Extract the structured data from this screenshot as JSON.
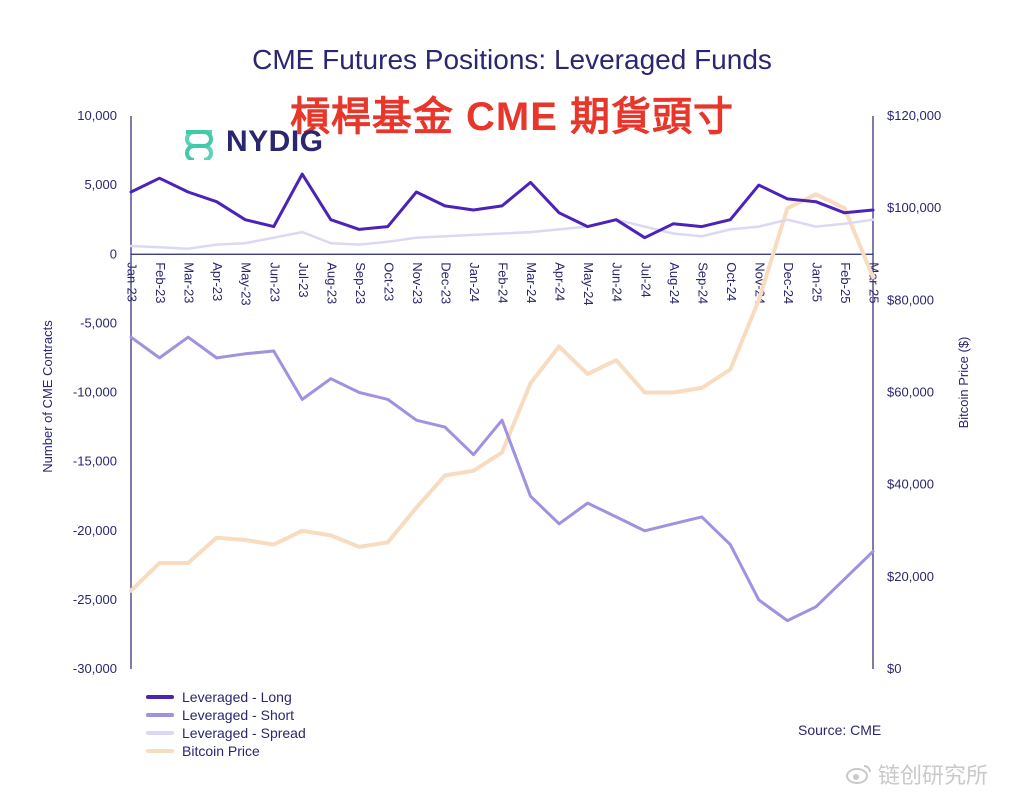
{
  "title": "CME Futures Positions: Leveraged Funds",
  "subtitle": "槓桿基金 CME 期貨頭寸",
  "logo_text": "NYDIG",
  "source": "Source: CME",
  "watermark": "链创研究所",
  "colors": {
    "long": "#4b23b8",
    "short": "#a290e0",
    "spread": "#dcd8f4",
    "bitcoin": "#f7dcc0",
    "axis_text": "#2a2670",
    "logo_accent": "#44c9a8",
    "subtitle": "#e8362b"
  },
  "chart_data": {
    "type": "line",
    "title": "CME Futures Positions: Leveraged Funds",
    "ylabel": "Number of CME Contracts",
    "y2label": "Bitcoin Price ($)",
    "ylim": [
      -30000,
      10000
    ],
    "y2lim": [
      0,
      120000
    ],
    "grid": false,
    "legend_position": "bottom-left",
    "yticks": [
      "10,000",
      "5,000",
      "0",
      "-5,000",
      "-10,000",
      "-15,000",
      "-20,000",
      "-25,000",
      "-30,000"
    ],
    "y2ticks": [
      "$120,000",
      "$100,000",
      "$80,000",
      "$60,000",
      "$40,000",
      "$20,000",
      "$0"
    ],
    "x": [
      "Jan-23",
      "Feb-23",
      "Mar-23",
      "Apr-23",
      "May-23",
      "Jun-23",
      "Jul-23",
      "Aug-23",
      "Sep-23",
      "Oct-23",
      "Nov-23",
      "Dec-23",
      "Jan-24",
      "Feb-24",
      "Mar-24",
      "Apr-24",
      "May-24",
      "Jun-24",
      "Jul-24",
      "Aug-24",
      "Sep-24",
      "Oct-24",
      "Nov-24",
      "Dec-24",
      "Jan-25",
      "Feb-25",
      "Mar-25"
    ],
    "series": [
      {
        "name": "Leveraged - Long",
        "axis": "left",
        "color": "#4b23b8",
        "values": [
          4500,
          5500,
          4500,
          3800,
          2500,
          2000,
          5800,
          2500,
          1800,
          2000,
          4500,
          3500,
          3200,
          3500,
          5200,
          3000,
          2000,
          2500,
          1200,
          2200,
          2000,
          2500,
          5000,
          4000,
          3800,
          3000,
          3200
        ]
      },
      {
        "name": "Leveraged - Short",
        "axis": "left",
        "color": "#a290e0",
        "values": [
          -6000,
          -7500,
          -6000,
          -7500,
          -7200,
          -7000,
          -10500,
          -9000,
          -10000,
          -10500,
          -12000,
          -12500,
          -14500,
          -12000,
          -17500,
          -19500,
          -18000,
          -19000,
          -20000,
          -19500,
          -19000,
          -21000,
          -25000,
          -26500,
          -25500,
          -23500,
          -21500
        ]
      },
      {
        "name": "Leveraged - Spread",
        "axis": "left",
        "color": "#dcd8f4",
        "values": [
          600,
          500,
          400,
          700,
          800,
          1200,
          1600,
          800,
          700,
          900,
          1200,
          1300,
          1400,
          1500,
          1600,
          1800,
          2000,
          2500,
          2000,
          1500,
          1300,
          1800,
          2000,
          2500,
          2000,
          2200,
          2500
        ]
      },
      {
        "name": "Bitcoin Price",
        "axis": "right",
        "color": "#f7dcc0",
        "values": [
          17000,
          23000,
          23000,
          28500,
          28000,
          27000,
          30000,
          29000,
          26500,
          27500,
          35000,
          42000,
          43000,
          47000,
          62000,
          70000,
          64000,
          67000,
          60000,
          60000,
          61000,
          65000,
          80000,
          100000,
          103000,
          100000,
          85000
        ]
      }
    ]
  }
}
